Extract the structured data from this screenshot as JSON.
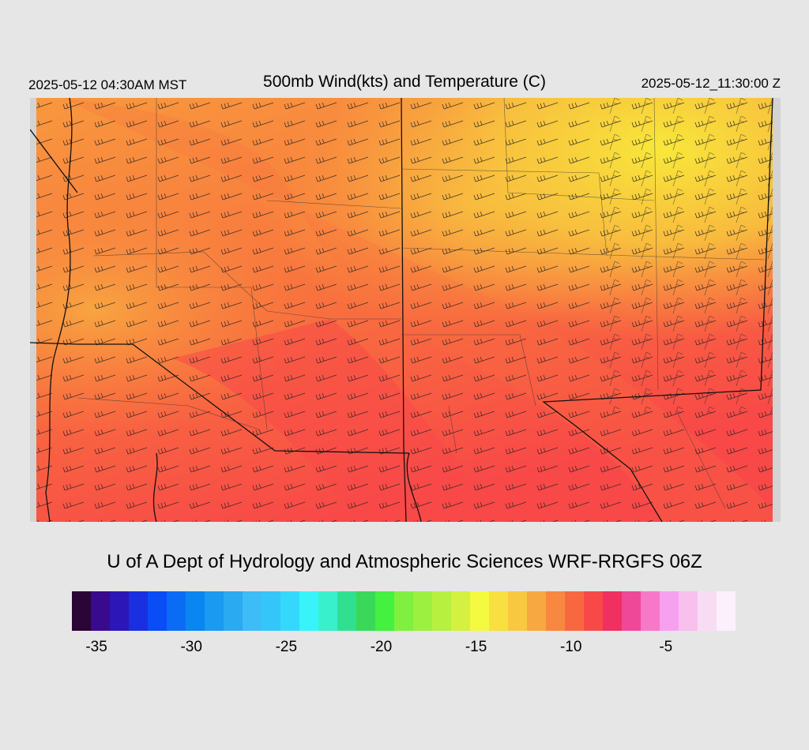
{
  "header": {
    "local_time": "2025-05-12 04:30AM MST",
    "title": "500mb Wind(kts) and Temperature (C)",
    "valid_time": "2025-05-12_11:30:00 Z"
  },
  "credit": "U of A Dept of Hydrology and Atmospheric Sciences WRF-RRGFS 06Z",
  "colorbar": {
    "colors": [
      "#2a0536",
      "#3a0a8c",
      "#2d16b8",
      "#1a2fe0",
      "#0a4cf5",
      "#0a6cf5",
      "#0a86f0",
      "#1a9af0",
      "#2aaaf0",
      "#3ebcf8",
      "#34c6f8",
      "#34d8fc",
      "#38f4fa",
      "#38f0cc",
      "#30e090",
      "#3ad858",
      "#44f040",
      "#80f040",
      "#9cf040",
      "#b8f040",
      "#d4f040",
      "#f4fa40",
      "#f8e040",
      "#f8c840",
      "#f8a840",
      "#f88840",
      "#f86840",
      "#f84848",
      "#f03060",
      "#f04898",
      "#f878c8",
      "#f8a0f0",
      "#f8c0ec",
      "#f8dcf4",
      "#fcf0fc"
    ],
    "ticks": [
      {
        "label": "-35",
        "pos": 0.037
      },
      {
        "label": "-30",
        "pos": 0.18
      },
      {
        "label": "-25",
        "pos": 0.323
      },
      {
        "label": "-20",
        "pos": 0.466
      },
      {
        "label": "-15",
        "pos": 0.609
      },
      {
        "label": "-10",
        "pos": 0.752
      },
      {
        "label": "-5",
        "pos": 0.895
      }
    ]
  }
}
